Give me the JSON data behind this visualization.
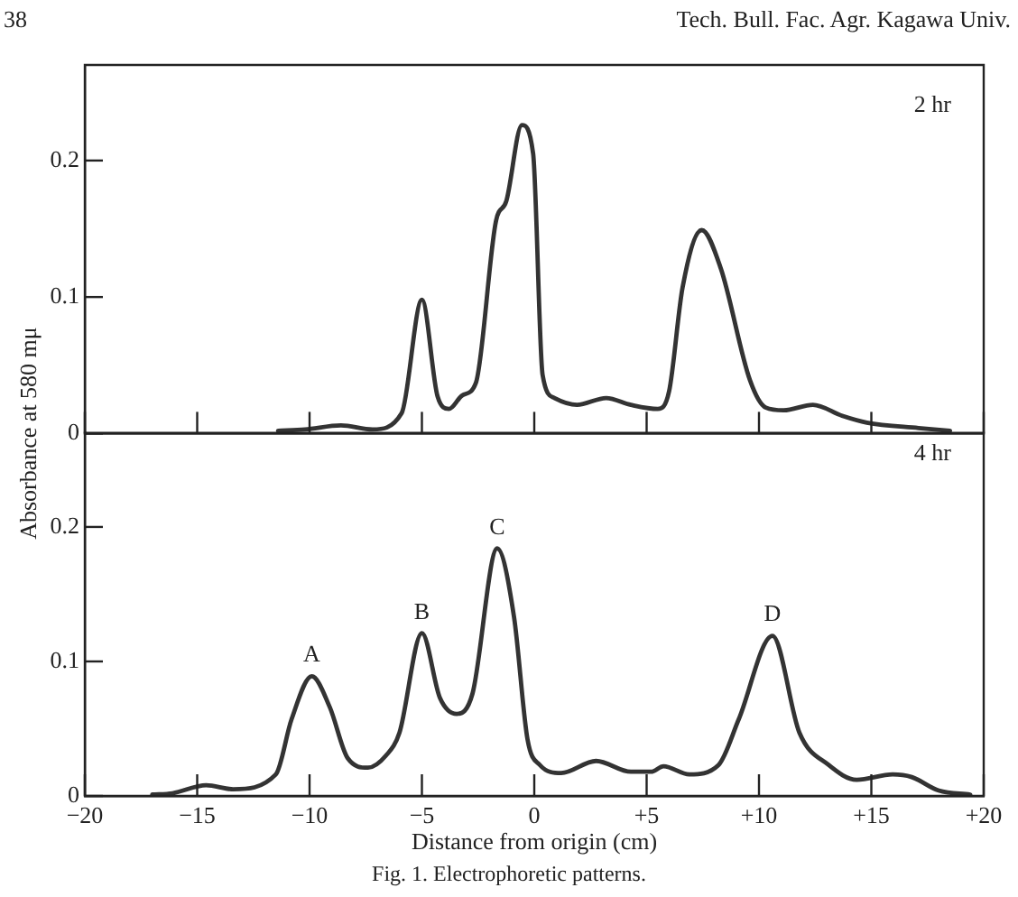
{
  "chart_data": [
    {
      "type": "line",
      "ylabel": "Absorbance at 580 mμ",
      "annotations": [
        "2 hr",
        "38",
        "Tech. Bull. Fac. Agr. Kagawa Univ."
      ],
      "xlim": [
        -20,
        20
      ],
      "xticks": [
        {
          "value": -20,
          "label": null
        },
        {
          "value": -15,
          "label": null
        },
        {
          "value": -10,
          "label": null
        },
        {
          "value": -5,
          "label": null
        },
        {
          "value": 0,
          "label": null
        },
        {
          "value": 5,
          "label": null
        },
        {
          "value": 10,
          "label": null
        },
        {
          "value": 15,
          "label": null
        },
        {
          "value": 20,
          "label": null
        }
      ],
      "ylim": [
        0,
        0.27
      ],
      "yticks": [
        0,
        0.1,
        0.2
      ],
      "tick_labels": "y",
      "marker": "none",
      "line_style": "solid",
      "grid": false,
      "series": [
        {
          "color": "#333333",
          "x": [
            -11.4,
            -10.2,
            -8.6,
            -7.2,
            -5.9,
            -5.0,
            -4.3,
            -3.8,
            -3.2,
            -2.6,
            -1.7,
            -1.25,
            -0.55,
            -0.05,
            0.37,
            0.9,
            1.9,
            3.2,
            4.3,
            5.5,
            6.0,
            6.6,
            7.45,
            8.3,
            9.6,
            10.3,
            11.1,
            12.4,
            13.7,
            14.8,
            17.1,
            18.5
          ],
          "values": [
            0.002,
            0.003,
            0.006,
            0.003,
            0.015,
            0.098,
            0.027,
            0.018,
            0.028,
            0.037,
            0.156,
            0.17,
            0.226,
            0.205,
            0.043,
            0.026,
            0.021,
            0.026,
            0.021,
            0.018,
            0.031,
            0.107,
            0.149,
            0.121,
            0.039,
            0.019,
            0.017,
            0.021,
            0.013,
            0.008,
            0.004,
            0.002
          ]
        }
      ]
    },
    {
      "type": "line",
      "xlabel": "Distance from origin (cm)",
      "annotations": [
        "4 hr",
        "Fig. 1.  Electrophoretic patterns.",
        {
          "text": "A",
          "x": -9.9,
          "y": 0.089
        },
        {
          "text": "B",
          "x": -5.0,
          "y": 0.121
        },
        {
          "text": "C",
          "x": -1.65,
          "y": 0.184
        },
        {
          "text": "D",
          "x": 10.6,
          "y": 0.119
        }
      ],
      "xlim": [
        -20,
        20
      ],
      "xticks": [
        {
          "value": -20,
          "label": "−20"
        },
        {
          "value": -15,
          "label": "−15"
        },
        {
          "value": -10,
          "label": "−10"
        },
        {
          "value": -5,
          "label": "−5"
        },
        {
          "value": 0,
          "label": "0"
        },
        {
          "value": 5,
          "label": "+5"
        },
        {
          "value": 10,
          "label": "+10"
        },
        {
          "value": 15,
          "label": "+15"
        },
        {
          "value": 20,
          "label": "+20"
        }
      ],
      "ylim": [
        0,
        0.27
      ],
      "yticks": [
        0,
        0.1,
        0.2
      ],
      "marker": "none",
      "line_style": "solid",
      "grid": false,
      "series": [
        {
          "color": "#333333",
          "x": [
            -17.0,
            -16.1,
            -14.6,
            -13.4,
            -11.5,
            -10.8,
            -9.9,
            -9.1,
            -8.3,
            -7.4,
            -6.6,
            -6.0,
            -5.0,
            -4.2,
            -3.45,
            -2.75,
            -1.65,
            -0.9,
            -0.3,
            0.25,
            1.2,
            2.75,
            4.3,
            5.2,
            5.75,
            6.9,
            8.2,
            9.1,
            10.6,
            11.8,
            13.1,
            14.35,
            15.95,
            16.8,
            18.0,
            19.4
          ],
          "values": [
            0.001,
            0.002,
            0.008,
            0.005,
            0.016,
            0.057,
            0.089,
            0.066,
            0.028,
            0.021,
            0.03,
            0.047,
            0.121,
            0.073,
            0.061,
            0.076,
            0.184,
            0.133,
            0.042,
            0.023,
            0.017,
            0.026,
            0.018,
            0.018,
            0.022,
            0.016,
            0.023,
            0.057,
            0.119,
            0.047,
            0.023,
            0.012,
            0.016,
            0.014,
            0.004,
            0.001
          ]
        }
      ]
    }
  ]
}
